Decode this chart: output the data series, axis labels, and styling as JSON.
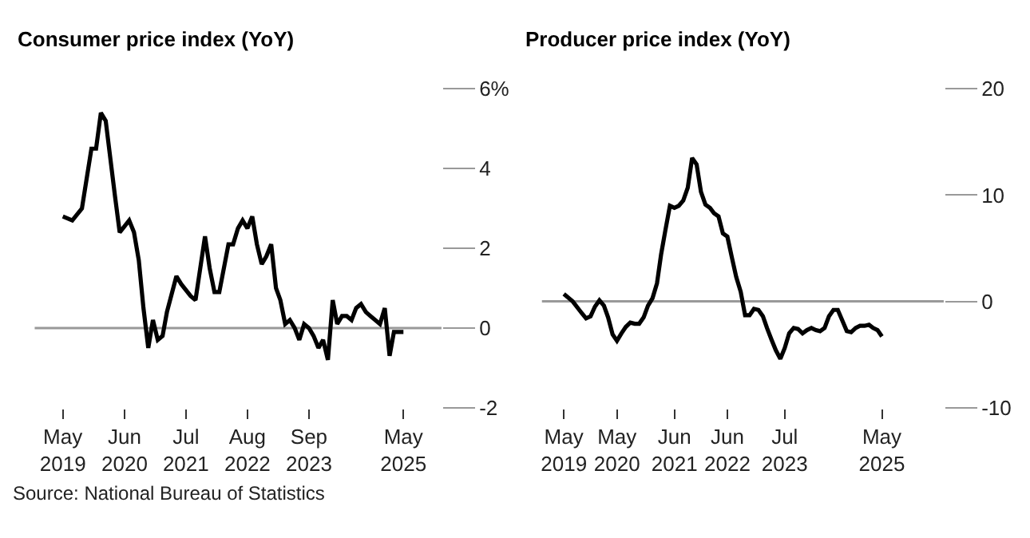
{
  "chart_data": [
    {
      "type": "line",
      "title": "Consumer price index (YoY)",
      "x": [
        "2019-05",
        "2019-07",
        "2019-09",
        "2019-11",
        "2019-12",
        "2020-01",
        "2020-02",
        "2020-04",
        "2020-05",
        "2020-07",
        "2020-08",
        "2020-09",
        "2020-10",
        "2020-11",
        "2020-12",
        "2021-01",
        "2021-02",
        "2021-03",
        "2021-05",
        "2021-06",
        "2021-08",
        "2021-09",
        "2021-11",
        "2021-12",
        "2022-01",
        "2022-02",
        "2022-04",
        "2022-05",
        "2022-06",
        "2022-07",
        "2022-08",
        "2022-09",
        "2022-10",
        "2022-11",
        "2022-12",
        "2023-01",
        "2023-02",
        "2023-03",
        "2023-04",
        "2023-05",
        "2023-06",
        "2023-07",
        "2023-08",
        "2023-09",
        "2023-10",
        "2023-11",
        "2023-12",
        "2024-01",
        "2024-02",
        "2024-03",
        "2024-04",
        "2024-05",
        "2024-06",
        "2024-07",
        "2024-08",
        "2024-09",
        "2024-10",
        "2024-11",
        "2024-12",
        "2025-01",
        "2025-02",
        "2025-03",
        "2025-04",
        "2025-05"
      ],
      "series": [
        {
          "color": "#000000",
          "values": [
            2.8,
            2.7,
            3.0,
            4.5,
            4.5,
            5.4,
            5.2,
            3.3,
            2.4,
            2.7,
            2.4,
            1.7,
            0.5,
            -0.5,
            0.2,
            -0.3,
            -0.2,
            0.4,
            1.3,
            1.1,
            0.8,
            0.7,
            2.3,
            1.5,
            0.9,
            0.9,
            2.1,
            2.1,
            2.5,
            2.7,
            2.5,
            2.8,
            2.1,
            1.6,
            1.8,
            2.1,
            1.0,
            0.7,
            0.1,
            0.2,
            0.0,
            -0.3,
            0.1,
            0.0,
            -0.2,
            -0.5,
            -0.3,
            -0.8,
            0.7,
            0.1,
            0.3,
            0.3,
            0.2,
            0.5,
            0.6,
            0.4,
            0.3,
            0.2,
            0.1,
            0.5,
            -0.7,
            -0.1,
            -0.1,
            -0.1
          ]
        }
      ],
      "xlim": [
        "2018-11",
        "2026-01"
      ],
      "xticks": [
        {
          "value": "2019-05",
          "label": "May\n2019"
        },
        {
          "value": "2020-06",
          "label": "Jun\n2020"
        },
        {
          "value": "2021-07",
          "label": "Jul\n2021"
        },
        {
          "value": "2022-08",
          "label": "Aug\n2022"
        },
        {
          "value": "2023-09",
          "label": "Sep\n2023"
        },
        {
          "value": "2025-05",
          "label": "May\n2025"
        }
      ],
      "ylim": [
        -2,
        6
      ],
      "yticks": [
        -2,
        0,
        2,
        4,
        {
          "value": 6,
          "label": "6%"
        }
      ],
      "ref_lines": [
        {
          "axis": "y",
          "value": 0,
          "color": "#999999"
        }
      ],
      "grid": false,
      "marker": "none",
      "line_style": "solid",
      "annotations": [
        "Source: National Bureau of Statistics"
      ]
    },
    {
      "type": "line",
      "title": "Producer price index (YoY)",
      "x": [
        "2019-05",
        "2019-07",
        "2019-09",
        "2019-10",
        "2019-11",
        "2019-12",
        "2020-01",
        "2020-02",
        "2020-03",
        "2020-04",
        "2020-05",
        "2020-06",
        "2020-07",
        "2020-08",
        "2020-09",
        "2020-10",
        "2020-11",
        "2020-12",
        "2021-01",
        "2021-02",
        "2021-03",
        "2021-04",
        "2021-05",
        "2021-06",
        "2021-07",
        "2021-08",
        "2021-09",
        "2021-10",
        "2021-11",
        "2021-12",
        "2022-01",
        "2022-02",
        "2022-03",
        "2022-04",
        "2022-05",
        "2022-06",
        "2022-07",
        "2022-08",
        "2022-09",
        "2022-10",
        "2022-11",
        "2022-12",
        "2023-01",
        "2023-02",
        "2023-03",
        "2023-04",
        "2023-05",
        "2023-06",
        "2023-07",
        "2023-08",
        "2023-09",
        "2023-10",
        "2023-11",
        "2023-12",
        "2024-01",
        "2024-02",
        "2024-03",
        "2024-04",
        "2024-05",
        "2024-06",
        "2024-07",
        "2024-08",
        "2024-09",
        "2024-10",
        "2024-11",
        "2024-12",
        "2025-01",
        "2025-02",
        "2025-03",
        "2025-04",
        "2025-05"
      ],
      "series": [
        {
          "color": "#000000",
          "values": [
            0.7,
            0,
            -1.1,
            -1.6,
            -1.4,
            -0.5,
            0.1,
            -0.4,
            -1.5,
            -3.1,
            -3.7,
            -3.0,
            -2.4,
            -2.0,
            -2.1,
            -2.1,
            -1.5,
            -0.4,
            0.3,
            1.7,
            4.4,
            6.8,
            9.0,
            8.8,
            9.0,
            9.5,
            10.7,
            13.5,
            12.9,
            10.3,
            9.1,
            8.8,
            8.3,
            8.0,
            6.4,
            6.1,
            4.2,
            2.3,
            0.9,
            -1.3,
            -1.3,
            -0.7,
            -0.8,
            -1.4,
            -2.5,
            -3.6,
            -4.6,
            -5.4,
            -4.4,
            -3.0,
            -2.5,
            -2.6,
            -3.0,
            -2.7,
            -2.5,
            -2.7,
            -2.8,
            -2.5,
            -1.4,
            -0.8,
            -0.8,
            -1.8,
            -2.8,
            -2.9,
            -2.5,
            -2.3,
            -2.3,
            -2.2,
            -2.5,
            -2.7,
            -3.3
          ]
        }
      ],
      "xlim": [
        "2018-12",
        "2026-07"
      ],
      "xticks": [
        {
          "value": "2019-05",
          "label": "May\n2019"
        },
        {
          "value": "2020-05",
          "label": "May\n2020"
        },
        {
          "value": "2021-06",
          "label": "Jun\n2021"
        },
        {
          "value": "2022-06",
          "label": "Jun\n2022"
        },
        {
          "value": "2023-07",
          "label": "Jul\n2023"
        },
        {
          "value": "2025-05",
          "label": "May\n2025"
        }
      ],
      "ylim": [
        -10,
        20
      ],
      "yticks": [
        -10,
        0,
        10,
        20
      ],
      "ref_lines": [
        {
          "axis": "y",
          "value": 0,
          "color": "#999999"
        }
      ],
      "grid": false,
      "marker": "none",
      "line_style": "solid"
    }
  ]
}
